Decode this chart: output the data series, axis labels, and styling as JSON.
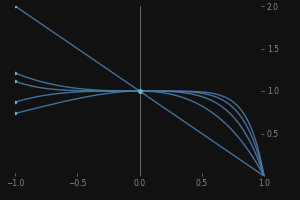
{
  "xlim": [
    -1.0,
    1.0
  ],
  "ylim": [
    0.0,
    2.0
  ],
  "n_factors": 5,
  "background_color": "#111111",
  "line_color": "#4a7aaa",
  "line_alpha": 0.9,
  "line_width": 1.0,
  "tick_color": "#888888",
  "axis_color": "#666666",
  "dot_color": "#5bbdcc",
  "xticks": [
    -1.0,
    -0.5,
    0.0,
    0.5,
    1.0
  ],
  "yticks": [
    0.5,
    1.0,
    1.5,
    2.0
  ],
  "n_points": 600
}
